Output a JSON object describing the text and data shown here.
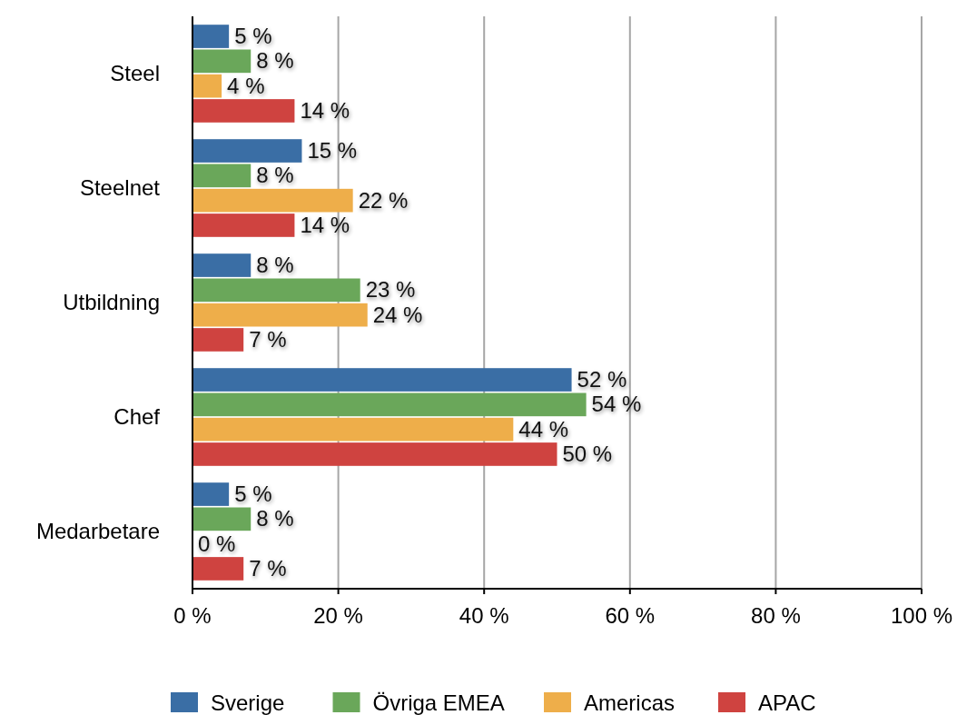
{
  "chart_data": {
    "type": "bar",
    "orientation": "horizontal",
    "categories": [
      "Steel",
      "Steelnet",
      "Utbildning",
      "Chef",
      "Medarbetare"
    ],
    "series": [
      {
        "name": "Sverige",
        "color": "#3a6ea5",
        "values": [
          5,
          15,
          8,
          52,
          5
        ],
        "value_labels": [
          "5 %",
          "15 %",
          "8 %",
          "52 %",
          "5 %"
        ]
      },
      {
        "name": "Övriga EMEA",
        "color": "#6aa75a",
        "values": [
          8,
          8,
          23,
          54,
          8
        ],
        "value_labels": [
          "8 %",
          "8 %",
          "23 %",
          "54 %",
          "8 %"
        ]
      },
      {
        "name": "Americas",
        "color": "#eeae4a",
        "values": [
          4,
          22,
          24,
          44,
          0
        ],
        "value_labels": [
          "4 %",
          "22 %",
          "24 %",
          "44 %",
          "0 %"
        ]
      },
      {
        "name": "APAC",
        "color": "#cf4340",
        "values": [
          14,
          14,
          7,
          50,
          7
        ],
        "value_labels": [
          "14 %",
          "14 %",
          "7 %",
          "50 %",
          "7 %"
        ]
      }
    ],
    "xlim": [
      0,
      100
    ],
    "xticks": [
      {
        "value": 0,
        "label": "0 %"
      },
      {
        "value": 20,
        "label": "20 %"
      },
      {
        "value": 40,
        "label": "40 %"
      },
      {
        "value": 60,
        "label": "60 %"
      },
      {
        "value": 80,
        "label": "80 %"
      },
      {
        "value": 100,
        "label": "100 %"
      }
    ],
    "grid": "x",
    "legend": "bottom"
  }
}
